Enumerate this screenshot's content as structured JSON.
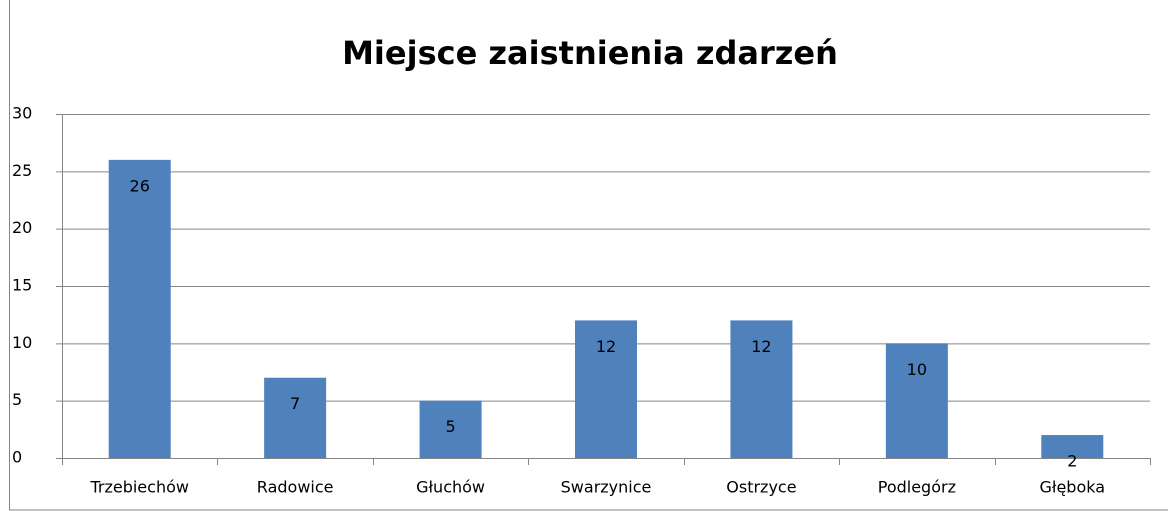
{
  "chart_data": {
    "type": "bar",
    "title": "Miejsce zaistnienia zdarzeń",
    "categories": [
      "Trzebiechów",
      "Radowice",
      "Głuchów",
      "Swarzynice",
      "Ostrzyce",
      "Podlegórz",
      "Głęboka"
    ],
    "values": [
      26,
      7,
      5,
      12,
      12,
      10,
      2
    ],
    "color": "#4f81bd",
    "ylim": [
      0,
      30
    ],
    "yticks": [
      0,
      5,
      10,
      15,
      20,
      25,
      30
    ],
    "grid": true
  }
}
